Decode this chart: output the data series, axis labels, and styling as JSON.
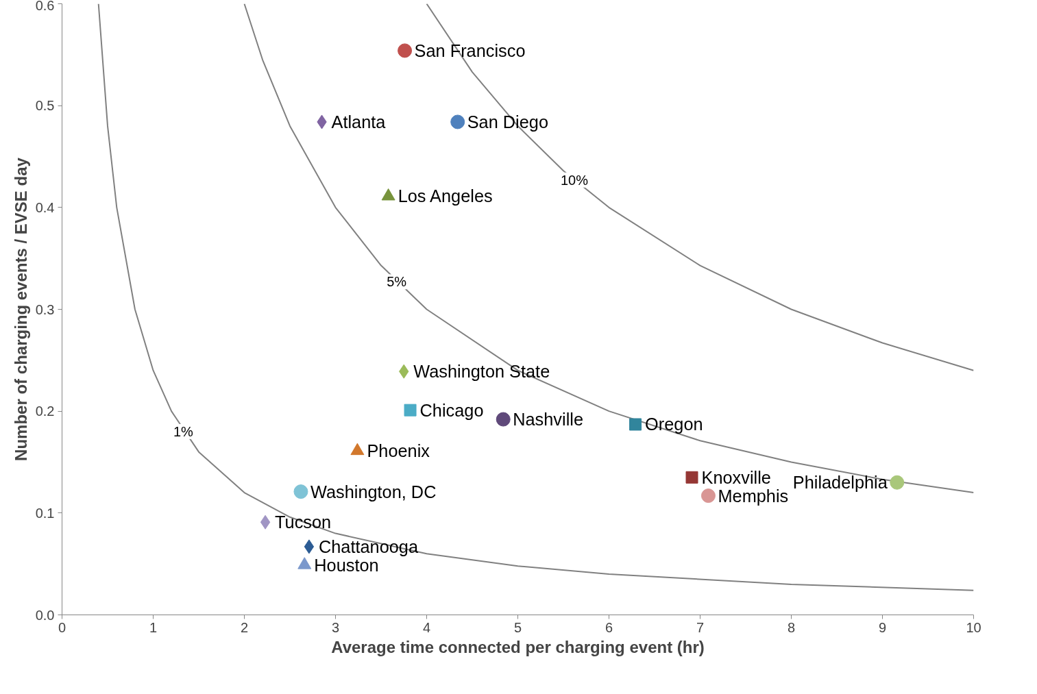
{
  "chart_data": {
    "type": "scatter",
    "xlabel": "Average time connected per charging event (hr)",
    "ylabel": "Number of charging events / EVSE day",
    "xlim": [
      0,
      10
    ],
    "ylim": [
      0,
      0.6
    ],
    "xticks": [
      0,
      1,
      2,
      3,
      4,
      5,
      6,
      7,
      8,
      9,
      10
    ],
    "yticks": [
      {
        "value": 0,
        "label": "0.0"
      },
      0.1,
      0.2,
      0.3,
      0.4,
      0.5,
      0.6
    ],
    "grid": false,
    "series": [
      {
        "type": "line",
        "color": "#808080",
        "x": [
          0.4,
          0.5,
          0.6,
          0.8,
          1,
          1.2,
          1.5,
          2,
          2.5,
          3,
          4,
          5,
          6,
          8,
          10
        ],
        "values": [
          0.6,
          0.48,
          0.4,
          0.3,
          0.24,
          0.2,
          0.16,
          0.12,
          0.096,
          0.08,
          0.06,
          0.048,
          0.04,
          0.03,
          0.024
        ]
      },
      {
        "type": "line",
        "color": "#808080",
        "x": [
          2,
          2.2,
          2.5,
          3,
          3.5,
          4,
          5,
          6,
          7,
          8,
          9,
          10
        ],
        "values": [
          0.6,
          0.545,
          0.48,
          0.4,
          0.343,
          0.3,
          0.24,
          0.2,
          0.171,
          0.15,
          0.133,
          0.12
        ]
      },
      {
        "type": "line",
        "color": "#808080",
        "x": [
          4,
          4.5,
          5,
          5.5,
          6,
          7,
          8,
          9,
          10
        ],
        "values": [
          0.6,
          0.533,
          0.48,
          0.436,
          0.4,
          0.343,
          0.3,
          0.267,
          0.24
        ]
      },
      {
        "name": "San Francisco",
        "marker": "circle",
        "color": "#c0504d",
        "x": [
          3.76
        ],
        "values": [
          0.554
        ]
      },
      {
        "name": "San Diego",
        "marker": "circle",
        "color": "#4f81bd",
        "x": [
          4.34
        ],
        "values": [
          0.484
        ]
      },
      {
        "name": "Atlanta",
        "marker": "diamond",
        "color": "#8064a2",
        "x": [
          2.85
        ],
        "values": [
          0.484
        ]
      },
      {
        "name": "Los Angeles",
        "marker": "triangle",
        "color": "#77933c",
        "x": [
          3.58
        ],
        "values": [
          0.411
        ]
      },
      {
        "name": "Washington State",
        "marker": "diamond",
        "color": "#9bbb59",
        "x": [
          3.75
        ],
        "values": [
          0.239
        ]
      },
      {
        "name": "Chicago",
        "marker": "square",
        "color": "#4bacc6",
        "x": [
          3.82
        ],
        "values": [
          0.201
        ]
      },
      {
        "name": "Nashville",
        "marker": "circle",
        "color": "#5f497a",
        "x": [
          4.84
        ],
        "values": [
          0.192
        ]
      },
      {
        "name": "Oregon",
        "marker": "square",
        "color": "#31859c",
        "x": [
          6.29
        ],
        "values": [
          0.187
        ]
      },
      {
        "name": "Phoenix",
        "marker": "triangle",
        "color": "#d2782c",
        "x": [
          3.24
        ],
        "values": [
          0.161
        ]
      },
      {
        "name": "Knoxville",
        "marker": "square",
        "color": "#953735",
        "x": [
          6.91
        ],
        "values": [
          0.135
        ]
      },
      {
        "name": "Memphis",
        "marker": "circle",
        "color": "#d99694",
        "x": [
          7.09
        ],
        "values": [
          0.117
        ]
      },
      {
        "name": "Philadelphia",
        "marker": "circle",
        "color": "#a9c77a",
        "x": [
          9.16
        ],
        "values": [
          0.13
        ]
      },
      {
        "name": "Washington, DC",
        "marker": "circle",
        "color": "#7fc3d6",
        "x": [
          2.62
        ],
        "values": [
          0.121
        ]
      },
      {
        "name": "Tucson",
        "marker": "diamond",
        "color": "#a095c4",
        "x": [
          2.23
        ],
        "values": [
          0.091
        ]
      },
      {
        "name": "Chattanooga",
        "marker": "diamond",
        "color": "#2c5c94",
        "x": [
          2.71
        ],
        "values": [
          0.067
        ]
      },
      {
        "name": "Houston",
        "marker": "triangle",
        "color": "#7b98cc",
        "x": [
          2.66
        ],
        "values": [
          0.049
        ]
      }
    ],
    "annotations": [
      {
        "text": "1%",
        "x": 1.33,
        "y": 0.18
      },
      {
        "text": "5%",
        "x": 3.67,
        "y": 0.327
      },
      {
        "text": "10%",
        "x": 5.62,
        "y": 0.427
      }
    ]
  }
}
